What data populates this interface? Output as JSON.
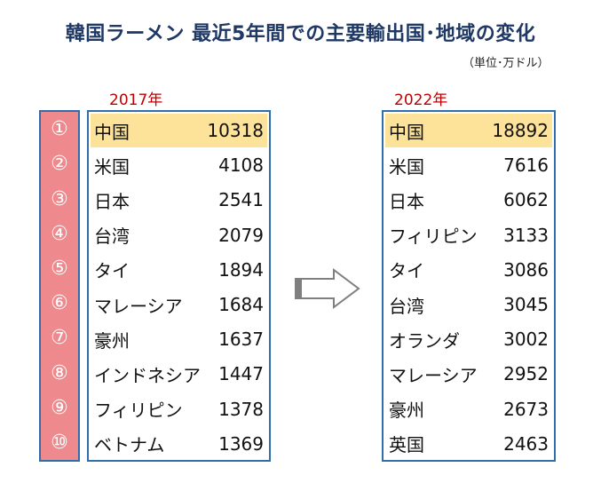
{
  "title": "韓国ラーメン 最近5年間での主要輸出国･地域の変化",
  "unit": "（単位･万ドル）",
  "ranks": [
    "①",
    "②",
    "③",
    "④",
    "⑤",
    "⑥",
    "⑦",
    "⑧",
    "⑨",
    "⑩"
  ],
  "colors": {
    "rank_bg": "#ee8a8e",
    "border": "#2f6ea8",
    "highlight": "#fde39a",
    "year": "#c00000",
    "title": "#1f3864"
  },
  "chart_data": [
    {
      "type": "table",
      "year_label": "2017年",
      "rows": [
        {
          "country": "中国",
          "value": "10318"
        },
        {
          "country": "米国",
          "value": "4108"
        },
        {
          "country": "日本",
          "value": "2541"
        },
        {
          "country": "台湾",
          "value": "2079"
        },
        {
          "country": "タイ",
          "value": "1894"
        },
        {
          "country": "マレーシア",
          "value": "1684"
        },
        {
          "country": "豪州",
          "value": "1637"
        },
        {
          "country": "インドネシア",
          "value": "1447"
        },
        {
          "country": "フィリピン",
          "value": "1378"
        },
        {
          "country": "ベトナム",
          "value": "1369"
        }
      ]
    },
    {
      "type": "table",
      "year_label": "2022年",
      "rows": [
        {
          "country": "中国",
          "value": "18892"
        },
        {
          "country": "米国",
          "value": "7616"
        },
        {
          "country": "日本",
          "value": "6062"
        },
        {
          "country": "フィリピン",
          "value": "3133"
        },
        {
          "country": "タイ",
          "value": "3086"
        },
        {
          "country": "台湾",
          "value": "3045"
        },
        {
          "country": "オランダ",
          "value": "3002"
        },
        {
          "country": "マレーシア",
          "value": "2952"
        },
        {
          "country": "豪州",
          "value": "2673"
        },
        {
          "country": "英国",
          "value": "2463"
        }
      ]
    }
  ]
}
